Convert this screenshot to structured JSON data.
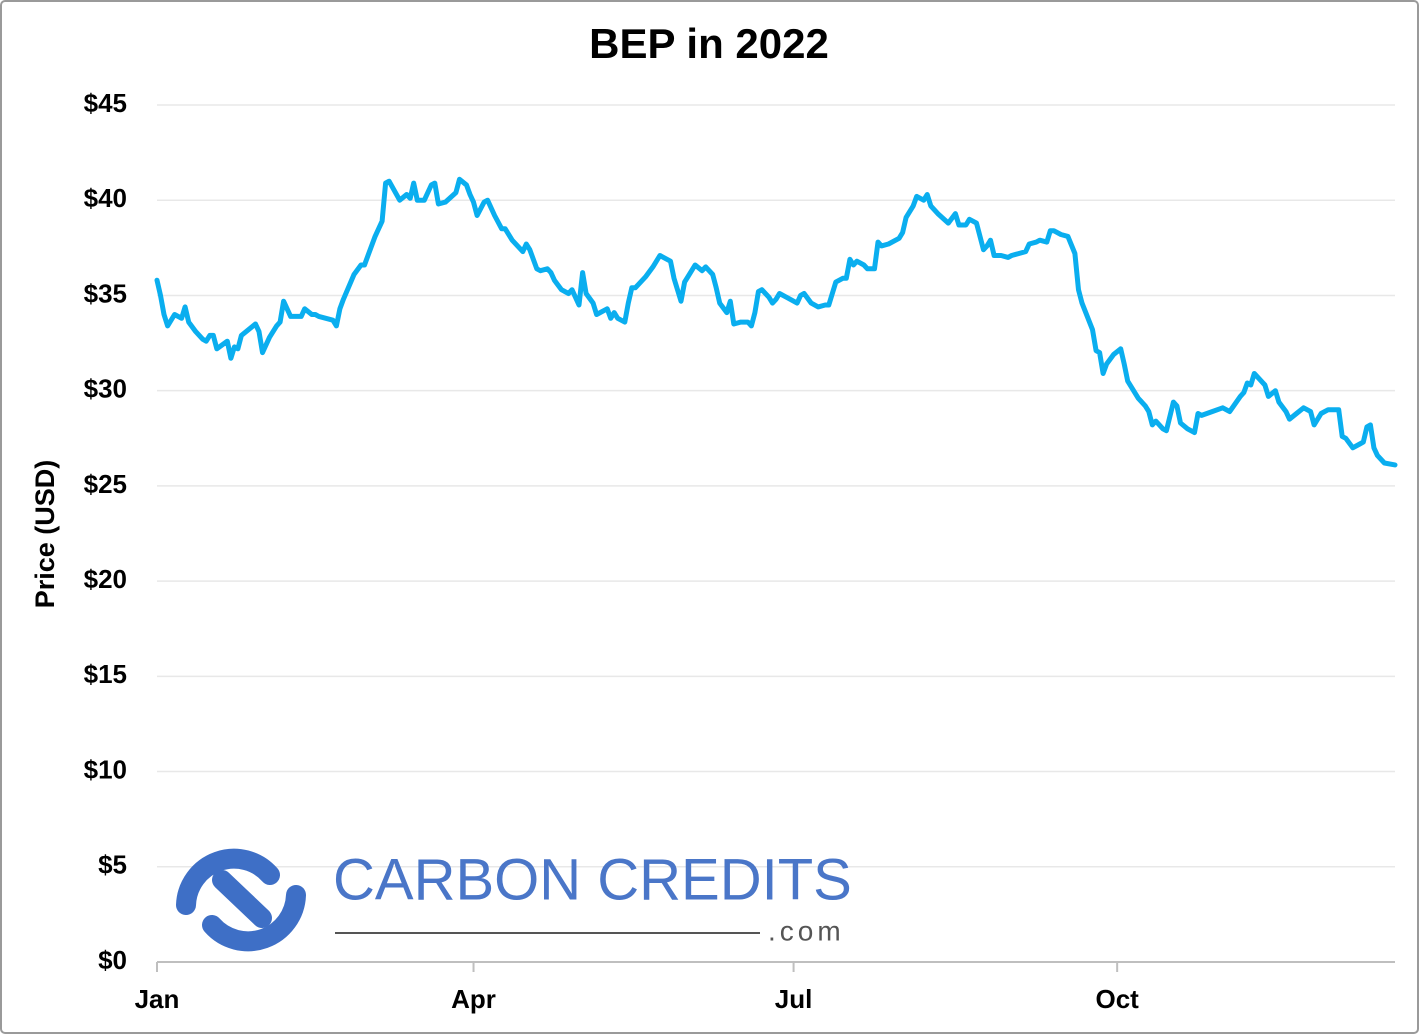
{
  "chart_data": {
    "type": "line",
    "title": "BEP in 2022",
    "y_label": "Price (USD)",
    "watermark": {
      "brand": "CARBON CREDITS",
      "domain": ".com"
    },
    "color": "#0aaeef",
    "grid": true,
    "xlim": [
      0,
      352
    ],
    "xticks": [
      {
        "value": 0,
        "label": "Jan"
      },
      {
        "value": 90,
        "label": "Apr"
      },
      {
        "value": 181,
        "label": "Jul"
      },
      {
        "value": 273,
        "label": "Oct"
      }
    ],
    "ylim": [
      0,
      45
    ],
    "yticks": [
      {
        "value": 0,
        "label": "$0"
      },
      {
        "value": 5,
        "label": "$5"
      },
      {
        "value": 10,
        "label": "$10"
      },
      {
        "value": 15,
        "label": "$15"
      },
      {
        "value": 20,
        "label": "$20"
      },
      {
        "value": 25,
        "label": "$25"
      },
      {
        "value": 30,
        "label": "$30"
      },
      {
        "value": 35,
        "label": "$35"
      },
      {
        "value": 40,
        "label": "$40"
      },
      {
        "value": 45,
        "label": "$45"
      }
    ],
    "x": [
      0,
      1,
      2,
      3,
      5,
      7,
      8,
      9,
      11,
      13,
      14,
      15,
      16,
      17,
      20,
      21,
      22,
      23,
      24,
      28,
      29,
      30,
      32,
      34,
      35,
      36,
      38,
      41,
      42,
      44,
      45,
      46,
      50,
      51,
      52,
      53,
      56,
      58,
      59,
      60,
      62,
      64,
      65,
      66,
      69,
      71,
      72,
      73,
      74,
      76,
      78,
      79,
      80,
      82,
      85,
      86,
      88,
      89,
      90,
      91,
      93,
      94,
      96,
      98,
      99,
      101,
      103,
      104,
      105,
      106,
      108,
      109,
      111,
      112,
      113,
      115,
      117,
      118,
      120,
      121,
      122,
      124,
      125,
      128,
      129,
      130,
      131,
      133,
      134,
      135,
      136,
      139,
      141,
      143,
      146,
      147,
      149,
      150,
      151,
      153,
      155,
      156,
      158,
      159,
      160,
      162,
      163,
      164,
      166,
      168,
      169,
      170,
      171,
      172,
      174,
      175,
      176,
      177,
      179,
      182,
      183,
      184,
      186,
      188,
      190,
      191,
      193,
      195,
      196,
      197,
      198,
      199,
      201,
      202,
      204,
      205,
      206,
      208,
      211,
      212,
      213,
      215,
      216,
      218,
      219,
      220,
      222,
      225,
      227,
      228,
      230,
      231,
      233,
      235,
      236,
      237,
      238,
      240,
      242,
      243,
      247,
      248,
      250,
      251,
      253,
      254,
      255,
      257,
      259,
      261,
      262,
      263,
      266,
      267,
      268,
      269,
      270,
      272,
      274,
      275,
      276,
      279,
      281,
      282,
      283,
      284,
      286,
      287,
      289,
      290,
      291,
      293,
      295,
      296,
      297,
      300,
      303,
      304,
      305,
      308,
      309,
      310,
      311,
      312,
      315,
      316,
      318,
      319,
      321,
      322,
      324,
      326,
      328,
      329,
      331,
      333,
      336,
      337,
      338,
      340,
      342,
      343,
      344,
      345,
      346,
      347,
      349,
      352
    ],
    "values": [
      35.8,
      35.0,
      34.0,
      33.4,
      34.0,
      33.8,
      34.4,
      33.6,
      33.1,
      32.7,
      32.6,
      32.9,
      32.9,
      32.2,
      32.6,
      31.7,
      32.3,
      32.2,
      32.9,
      33.5,
      33.1,
      32.0,
      32.8,
      33.4,
      33.6,
      34.7,
      33.9,
      33.9,
      34.3,
      34.0,
      34.0,
      33.9,
      33.7,
      33.4,
      34.3,
      34.8,
      36.1,
      36.6,
      36.6,
      37.1,
      38.1,
      38.9,
      40.9,
      41.0,
      40.0,
      40.3,
      40.1,
      40.9,
      40.0,
      40.0,
      40.8,
      40.9,
      39.8,
      39.9,
      40.4,
      41.1,
      40.8,
      40.3,
      39.9,
      39.2,
      39.9,
      40.0,
      39.2,
      38.5,
      38.5,
      37.9,
      37.5,
      37.3,
      37.7,
      37.4,
      36.4,
      36.3,
      36.4,
      36.2,
      35.8,
      35.3,
      35.1,
      35.3,
      34.5,
      36.2,
      35.1,
      34.6,
      34.0,
      34.3,
      33.8,
      34.1,
      33.8,
      33.6,
      34.6,
      35.4,
      35.4,
      36.0,
      36.5,
      37.1,
      36.8,
      35.9,
      34.7,
      35.7,
      36.0,
      36.6,
      36.3,
      36.5,
      36.1,
      35.4,
      34.6,
      34.1,
      34.7,
      33.5,
      33.6,
      33.6,
      33.4,
      34.1,
      35.2,
      35.3,
      34.9,
      34.6,
      34.8,
      35.1,
      34.9,
      34.6,
      35.0,
      35.1,
      34.6,
      34.4,
      34.5,
      34.5,
      35.7,
      35.9,
      35.9,
      36.9,
      36.6,
      36.8,
      36.6,
      36.4,
      36.4,
      37.8,
      37.6,
      37.7,
      38.0,
      38.3,
      39.1,
      39.7,
      40.2,
      40.0,
      40.3,
      39.7,
      39.3,
      38.8,
      39.3,
      38.7,
      38.7,
      39.0,
      38.8,
      37.4,
      37.6,
      37.9,
      37.1,
      37.1,
      37.0,
      37.1,
      37.3,
      37.7,
      37.8,
      37.9,
      37.8,
      38.4,
      38.4,
      38.2,
      38.1,
      37.2,
      35.3,
      34.6,
      33.2,
      32.1,
      32.0,
      30.9,
      31.4,
      31.9,
      32.2,
      31.4,
      30.5,
      29.6,
      29.2,
      28.9,
      28.2,
      28.4,
      28.0,
      27.9,
      29.4,
      29.2,
      28.3,
      28.0,
      27.8,
      28.8,
      28.7,
      28.9,
      29.1,
      29.0,
      28.9,
      29.7,
      29.9,
      30.4,
      30.3,
      30.9,
      30.3,
      29.7,
      30.0,
      29.4,
      28.9,
      28.5,
      28.8,
      29.1,
      28.9,
      28.2,
      28.8,
      29.0,
      29.0,
      27.6,
      27.5,
      27.0,
      27.2,
      27.3,
      28.1,
      28.2,
      27.0,
      26.6,
      26.2,
      26.1
    ]
  }
}
